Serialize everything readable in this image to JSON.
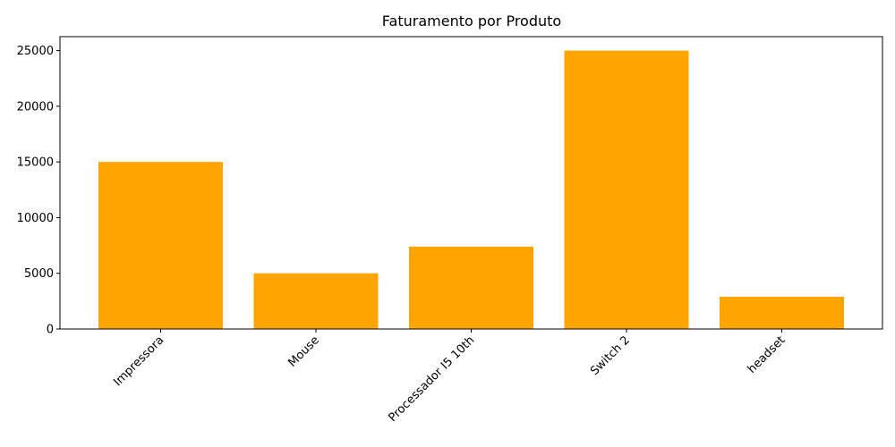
{
  "chart_data": {
    "type": "bar",
    "title": "Faturamento por Produto",
    "xlabel": "",
    "ylabel": "",
    "categories": [
      "Impressora",
      "Mouse",
      "Processador I5 10th",
      "Switch 2",
      "headset"
    ],
    "values": [
      15000,
      5000,
      7400,
      25000,
      2900
    ],
    "ylim": [
      0,
      26250
    ],
    "yticks": [
      0,
      5000,
      10000,
      15000,
      20000,
      25000
    ],
    "ytick_labels": [
      "0",
      "5000",
      "10000",
      "15000",
      "20000",
      "25000"
    ],
    "bar_color": "#ffa500",
    "x_tick_rotation": 45,
    "grid": false,
    "legend": "none"
  }
}
